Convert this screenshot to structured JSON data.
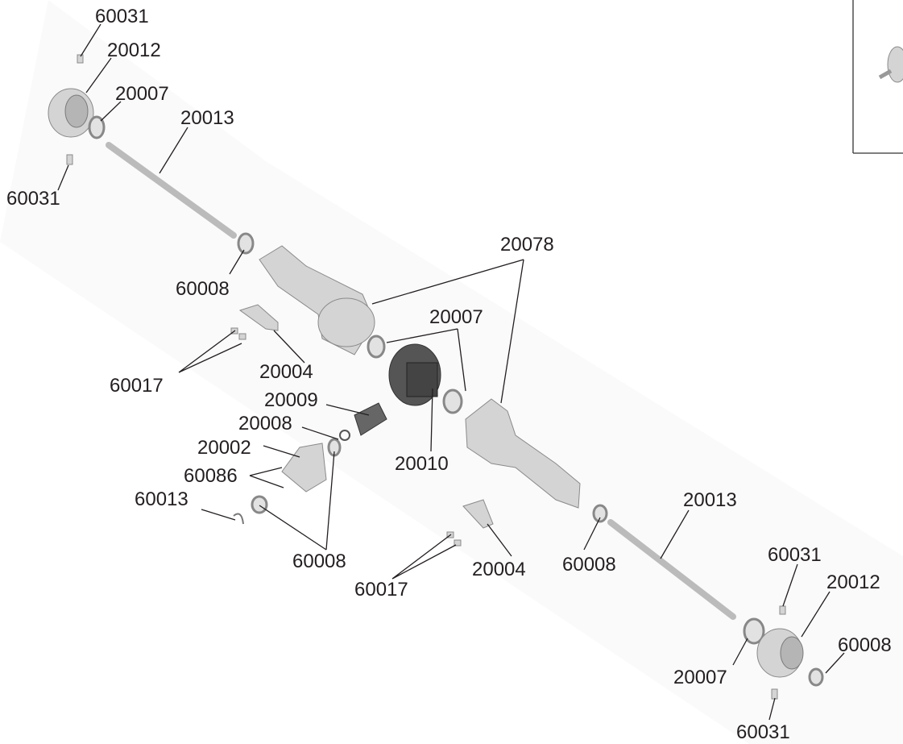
{
  "labels": [
    "60031",
    "20012",
    "20007",
    "20013",
    "60031",
    "60008",
    "20078",
    "20007",
    "20004",
    "60017",
    "20009",
    "20008",
    "20002",
    "60086",
    "20010",
    "60013",
    "20013",
    "60008",
    "20004",
    "60008",
    "60017",
    "60031",
    "20012",
    "60008",
    "20007",
    "60031"
  ]
}
